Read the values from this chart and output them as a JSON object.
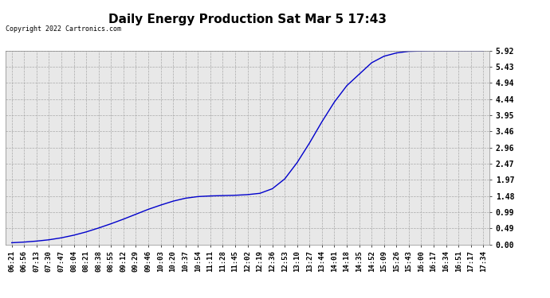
{
  "title": "Daily Energy Production Sat Mar 5 17:43",
  "copyright_text": "Copyright 2022 Cartronics.com",
  "offpeak_color": "#0000cc",
  "onpeak_color": "#cc0000",
  "copyright_color": "#000000",
  "background_color": "#ffffff",
  "plot_bg_color": "#e8e8e8",
  "grid_color": "#aaaaaa",
  "yticks": [
    0.0,
    0.49,
    0.99,
    1.48,
    1.97,
    2.47,
    2.96,
    3.46,
    3.95,
    4.44,
    4.94,
    5.43,
    5.92
  ],
  "ylim": [
    0.0,
    5.92
  ],
  "x_labels": [
    "06:21",
    "06:56",
    "07:13",
    "07:30",
    "07:47",
    "08:04",
    "08:21",
    "08:38",
    "08:55",
    "09:12",
    "09:29",
    "09:46",
    "10:03",
    "10:20",
    "10:37",
    "10:54",
    "11:11",
    "11:28",
    "11:45",
    "12:02",
    "12:19",
    "12:36",
    "12:53",
    "13:10",
    "13:27",
    "13:44",
    "14:01",
    "14:18",
    "14:35",
    "14:52",
    "15:09",
    "15:26",
    "15:43",
    "16:00",
    "16:17",
    "16:34",
    "16:51",
    "17:17",
    "17:34"
  ],
  "y_values": [
    0.05,
    0.07,
    0.1,
    0.14,
    0.2,
    0.28,
    0.38,
    0.5,
    0.63,
    0.77,
    0.92,
    1.07,
    1.2,
    1.32,
    1.41,
    1.46,
    1.48,
    1.49,
    1.5,
    1.52,
    1.56,
    1.7,
    2.0,
    2.5,
    3.1,
    3.75,
    4.35,
    4.85,
    5.2,
    5.55,
    5.75,
    5.85,
    5.9,
    5.91,
    5.92,
    5.92,
    5.92,
    5.92,
    5.92
  ],
  "title_fontsize": 11,
  "copyright_fontsize": 6,
  "legend_fontsize": 7,
  "tick_fontsize": 6.5,
  "ytick_fontsize": 7
}
